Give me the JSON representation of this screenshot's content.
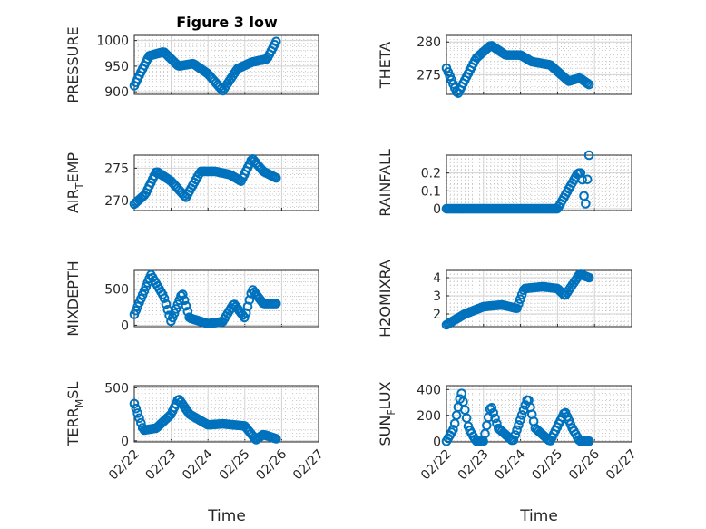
{
  "figure": {
    "title": "Figure 3 low",
    "xlabel": "Time"
  },
  "x_tick_labels": [
    "02/22",
    "02/23",
    "02/24",
    "02/25",
    "02/26",
    "02/27"
  ],
  "colors": {
    "marker": "#0072BD",
    "axes": "#262626",
    "grid": "#d2d2d2"
  },
  "chart_data": [
    {
      "type": "scatter",
      "title": "Figure 3 low",
      "ylabel": "PRESSURE",
      "ylim": [
        895,
        1010
      ],
      "yticks": [
        900,
        950,
        1000
      ],
      "xlim": [
        0,
        5
      ],
      "x": [
        0,
        0.4,
        0.8,
        1.2,
        1.6,
        2.0,
        2.4,
        2.8,
        3.2,
        3.6,
        3.85
      ],
      "values": [
        912,
        970,
        978,
        950,
        955,
        935,
        902,
        945,
        958,
        964,
        998
      ]
    },
    {
      "type": "scatter",
      "ylabel": "THETA",
      "ylim": [
        272,
        281
      ],
      "yticks": [
        275,
        280
      ],
      "xlim": [
        0,
        5
      ],
      "x": [
        0,
        0.3,
        0.8,
        1.2,
        1.6,
        2.0,
        2.3,
        2.8,
        3.3,
        3.6,
        3.85
      ],
      "values": [
        276,
        272,
        277.5,
        279.5,
        278,
        278,
        277,
        276.5,
        274,
        274.5,
        273.5
      ]
    },
    {
      "type": "scatter",
      "ylabel": "AIR_TEMP",
      "ylim": [
        268.5,
        277
      ],
      "yticks": [
        270,
        275
      ],
      "xlim": [
        0,
        5
      ],
      "x": [
        0,
        0.3,
        0.6,
        1.0,
        1.4,
        1.8,
        2.2,
        2.6,
        2.9,
        3.2,
        3.5,
        3.85
      ],
      "values": [
        269.5,
        271,
        274.5,
        273,
        270.5,
        274.5,
        274.5,
        274,
        273,
        276.5,
        274.5,
        273.5
      ]
    },
    {
      "type": "scatter",
      "ylabel": "RAINFALL",
      "ylim": [
        -0.01,
        0.3
      ],
      "yticks": [
        0,
        0.1,
        0.2
      ],
      "xlim": [
        0,
        5
      ],
      "x": [
        0,
        1.0,
        2.0,
        3.0,
        3.55,
        3.65,
        3.75,
        3.85
      ],
      "values": [
        0,
        0,
        0,
        0,
        0.2,
        0.2,
        0,
        0.3
      ]
    },
    {
      "type": "scatter",
      "ylabel": "MIXDEPTH",
      "ylim": [
        -20,
        760
      ],
      "yticks": [
        0,
        500
      ],
      "xlim": [
        0,
        5
      ],
      "x": [
        0,
        0.25,
        0.45,
        0.8,
        1.0,
        1.3,
        1.5,
        2.0,
        2.4,
        2.7,
        3.0,
        3.2,
        3.5,
        3.85
      ],
      "values": [
        150,
        450,
        700,
        400,
        50,
        450,
        100,
        20,
        50,
        300,
        100,
        500,
        300,
        300
      ]
    },
    {
      "type": "scatter",
      "ylabel": "H2OMIXRA",
      "ylim": [
        1.3,
        4.4
      ],
      "yticks": [
        2,
        3,
        4
      ],
      "xlim": [
        0,
        5
      ],
      "x": [
        0,
        0.5,
        1.0,
        1.5,
        1.9,
        2.1,
        2.6,
        3.0,
        3.2,
        3.6,
        3.85
      ],
      "values": [
        1.4,
        2.0,
        2.4,
        2.5,
        2.3,
        3.4,
        3.5,
        3.4,
        3.0,
        4.2,
        4.0
      ]
    },
    {
      "type": "scatter",
      "ylabel": "TERR_MSL",
      "ylim": [
        -10,
        520
      ],
      "yticks": [
        0,
        500
      ],
      "xlim": [
        0,
        5
      ],
      "x": [
        0,
        0.25,
        0.6,
        1.0,
        1.2,
        1.5,
        2.0,
        2.4,
        3.0,
        3.3,
        3.5,
        3.85
      ],
      "values": [
        350,
        100,
        120,
        250,
        400,
        250,
        150,
        160,
        140,
        10,
        60,
        20
      ]
    },
    {
      "type": "scatter",
      "ylabel": "SUN_FLUX",
      "ylim": [
        -5,
        430
      ],
      "yticks": [
        0,
        200,
        400
      ],
      "xlim": [
        0,
        5
      ],
      "x": [
        0,
        0.2,
        0.4,
        0.6,
        0.8,
        1.0,
        1.2,
        1.4,
        1.8,
        2.2,
        2.4,
        2.8,
        3.2,
        3.4,
        3.6,
        3.85
      ],
      "values": [
        0,
        100,
        380,
        100,
        0,
        0,
        280,
        100,
        0,
        340,
        100,
        0,
        230,
        100,
        0,
        0
      ]
    }
  ]
}
